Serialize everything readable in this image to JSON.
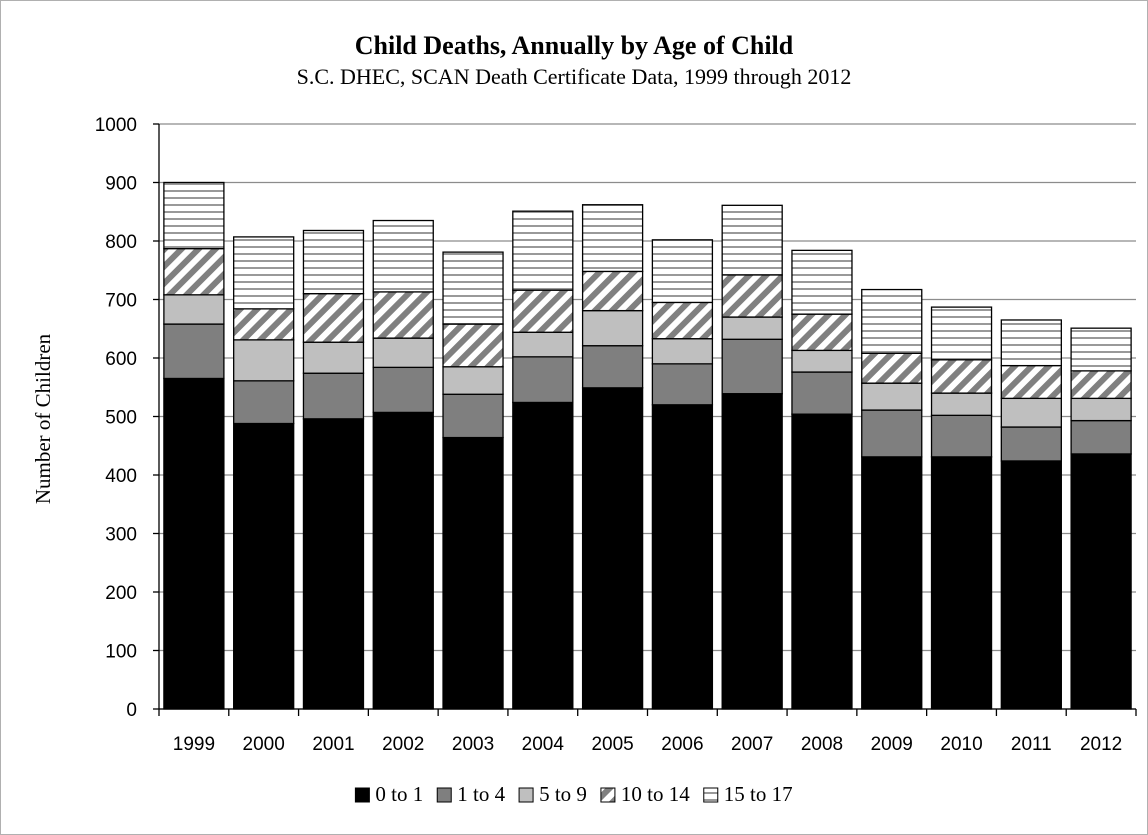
{
  "chart_data": {
    "type": "bar",
    "stacked": true,
    "title": "Child Deaths, Annually by Age of Child",
    "subtitle": "S.C. DHEC, SCAN Death Certificate Data, 1999 through 2012",
    "xlabel": "",
    "ylabel": "Number of Children",
    "ylim": [
      0,
      1000
    ],
    "yticks": [
      0,
      100,
      200,
      300,
      400,
      500,
      600,
      700,
      800,
      900,
      1000
    ],
    "grid": true,
    "legend_position": "bottom",
    "categories": [
      "1999",
      "2000",
      "2001",
      "2002",
      "2003",
      "2004",
      "2005",
      "2006",
      "2007",
      "2008",
      "2009",
      "2010",
      "2011",
      "2012"
    ],
    "series": [
      {
        "name": "0 to 1",
        "fill": "#000000",
        "pattern": "solid",
        "values": [
          565,
          488,
          496,
          507,
          464,
          524,
          549,
          520,
          539,
          504,
          431,
          431,
          424,
          436
        ]
      },
      {
        "name": "1 to 4",
        "fill": "#7f7f7f",
        "pattern": "solid",
        "values": [
          93,
          73,
          78,
          77,
          74,
          78,
          72,
          70,
          93,
          72,
          80,
          71,
          58,
          57
        ]
      },
      {
        "name": "5 to 9",
        "fill": "#bfbfbf",
        "pattern": "solid",
        "values": [
          50,
          70,
          53,
          50,
          47,
          42,
          60,
          43,
          38,
          37,
          46,
          38,
          49,
          38
        ]
      },
      {
        "name": "10 to 14",
        "fill": "#808080",
        "pattern": "diagonal-stripes",
        "values": [
          79,
          53,
          83,
          79,
          73,
          72,
          67,
          62,
          72,
          62,
          51,
          57,
          56,
          47
        ]
      },
      {
        "name": "15 to 17",
        "fill": "#808080",
        "pattern": "horizontal-stripes",
        "values": [
          113,
          123,
          108,
          122,
          123,
          135,
          114,
          107,
          119,
          109,
          109,
          90,
          78,
          73
        ]
      }
    ]
  }
}
